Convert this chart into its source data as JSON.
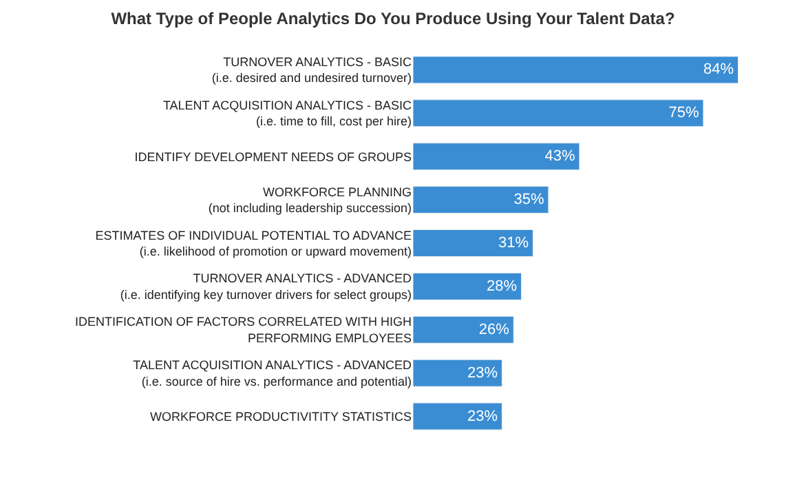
{
  "chart_data": {
    "type": "bar",
    "orientation": "horizontal",
    "title": "What Type of People Analytics Do You Produce Using Your Talent Data?",
    "categories": [
      "TURNOVER ANALYTICS - BASIC\n(i.e. desired and undesired turnover)",
      "TALENT ACQUISITION ANALYTICS - BASIC\n(i.e. time to fill, cost per hire)",
      "IDENTIFY DEVELOPMENT NEEDS OF GROUPS",
      "WORKFORCE PLANNING\n(not including leadership succession)",
      "ESTIMATES OF INDIVIDUAL POTENTIAL TO ADVANCE\n(i.e. likelihood of promotion or upward movement)",
      "TURNOVER ANALYTICS - ADVANCED\n(i.e. identifying key turnover drivers for select groups)",
      "IDENTIFICATION OF FACTORS CORRELATED WITH HIGH\nPERFORMING EMPLOYEES",
      "TALENT ACQUISITION ANALYTICS - ADVANCED\n(i.e. source of hire vs. performance and potential)",
      "WORKFORCE PRODUCTIVITITY STATISTICS"
    ],
    "values": [
      84,
      75,
      43,
      35,
      31,
      28,
      26,
      23,
      23
    ],
    "value_labels": [
      "84%",
      "75%",
      "43%",
      "35%",
      "31%",
      "28%",
      "26%",
      "23%",
      "23%"
    ],
    "color": "#3a8dd3"
  }
}
